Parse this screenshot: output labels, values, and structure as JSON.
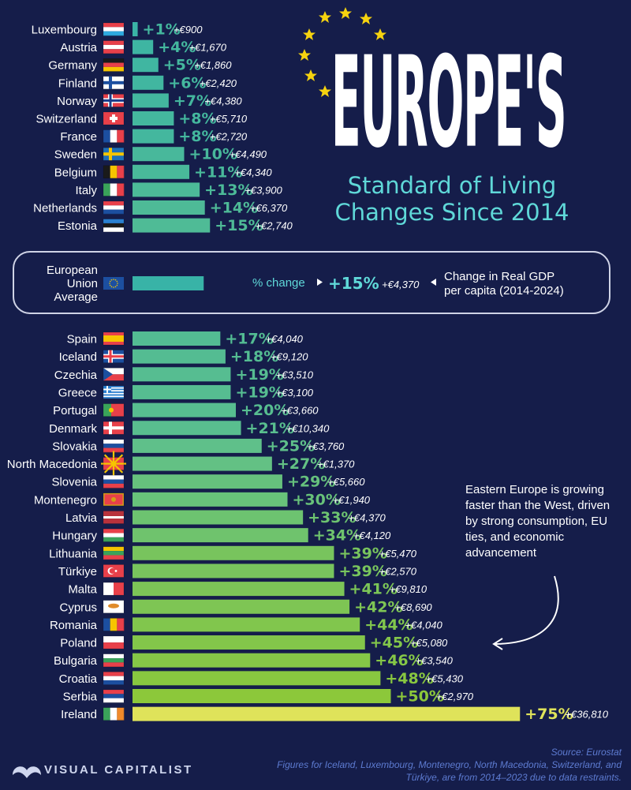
{
  "title": {
    "headline": "EUROPE'S",
    "subtitle_line1": "Standard of Living",
    "subtitle_line2": "Changes Since 2014"
  },
  "eu_box": {
    "label_line1": "European",
    "label_line2": "Union",
    "label_line3": "Average",
    "pct_change_label": "% change",
    "gdp_label_line1": "Change in Real GDP",
    "gdp_label_line2": "per capita (2014-2024)"
  },
  "annotation": "Eastern Europe is growing faster than the West, driven by strong consumption, EU ties, and economic advancement",
  "footer": {
    "brand": "VISUAL CAPITALIST",
    "source": "Source: Eurostat",
    "note": "Figures for Iceland, Luxembourg, Montenegro, North Macedonia, Switzerland, and Türkiye, are from 2014–2023 due to data restraints."
  },
  "colors": {
    "background": "#151d4a",
    "teal": "#38b3a7",
    "green": "#8cc83a",
    "yellow": "#dfe35a",
    "accent_text": "#5fd8d8",
    "star": "#f6d30f"
  },
  "chart_data": {
    "type": "bar",
    "orientation": "horizontal",
    "unit": "percent change in real GDP per capita, 2014-2024",
    "reference": {
      "name": "European Union Average",
      "pct": 15,
      "label": "+15%",
      "abs": "+€4,370"
    },
    "categories": [
      "Luxembourg",
      "Austria",
      "Germany",
      "Finland",
      "Norway",
      "Switzerland",
      "France",
      "Sweden",
      "Belgium",
      "Italy",
      "Netherlands",
      "Estonia",
      "Spain",
      "Iceland",
      "Czechia",
      "Greece",
      "Portugal",
      "Denmark",
      "Slovakia",
      "North Macedonia",
      "Slovenia",
      "Montenegro",
      "Latvia",
      "Hungary",
      "Lithuania",
      "Türkiye",
      "Malta",
      "Cyprus",
      "Romania",
      "Poland",
      "Bulgaria",
      "Croatia",
      "Serbia",
      "Ireland"
    ],
    "values": [
      1,
      4,
      5,
      6,
      7,
      8,
      8,
      10,
      11,
      13,
      14,
      15,
      17,
      18,
      19,
      19,
      20,
      21,
      25,
      27,
      29,
      30,
      33,
      34,
      39,
      39,
      41,
      42,
      44,
      45,
      46,
      48,
      50,
      75
    ],
    "pct_labels": [
      "+1%",
      "+4%",
      "+5%",
      "+6%",
      "+7%",
      "+8%",
      "+8%",
      "+10%",
      "+11%",
      "+13%",
      "+14%",
      "+15%",
      "+17%",
      "+18%",
      "+19%",
      "+19%",
      "+20%",
      "+21%",
      "+25%",
      "+27%",
      "+29%",
      "+30%",
      "+33%",
      "+34%",
      "+39%",
      "+39%",
      "+41%",
      "+42%",
      "+44%",
      "+45%",
      "+46%",
      "+48%",
      "+50%",
      "+75%"
    ],
    "abs_labels": [
      "+€900",
      "+€1,670",
      "+€1,860",
      "+€2,420",
      "+€4,380",
      "+€5,710",
      "+€2,720",
      "+€4,490",
      "+€4,340",
      "+€3,900",
      "+€6,370",
      "+€2,740",
      "+€4,040",
      "+€9,120",
      "+€3,510",
      "+€3,100",
      "+€3,660",
      "+€10,340",
      "+€3,760",
      "+€1,370",
      "+€5,660",
      "+€1,940",
      "+€4,370",
      "+€4,120",
      "+€5,470",
      "+€2,570",
      "+€9,810",
      "+€8,690",
      "+€4,040",
      "+€5,080",
      "+€3,540",
      "+€5,430",
      "+€2,970",
      "+€36,810"
    ],
    "flags": [
      {
        "t": "h",
        "c": [
          "#e8404a",
          "#ffffff",
          "#2eaadf"
        ]
      },
      {
        "t": "h",
        "c": [
          "#e8404a",
          "#ffffff",
          "#e8404a"
        ]
      },
      {
        "t": "h",
        "c": [
          "#1a1a1a",
          "#e8404a",
          "#f6c500"
        ]
      },
      {
        "t": "nordic",
        "c": [
          "#ffffff",
          "#1c4fa0"
        ]
      },
      {
        "t": "nordic2",
        "c": [
          "#e8404a",
          "#ffffff",
          "#1c3c8a"
        ]
      },
      {
        "t": "swiss",
        "c": [
          "#e8404a",
          "#ffffff"
        ]
      },
      {
        "t": "v",
        "c": [
          "#1c4fa0",
          "#ffffff",
          "#e8404a"
        ]
      },
      {
        "t": "nordic",
        "c": [
          "#1e6fb8",
          "#f6c500"
        ]
      },
      {
        "t": "v",
        "c": [
          "#1a1a1a",
          "#f6c500",
          "#e8404a"
        ]
      },
      {
        "t": "v",
        "c": [
          "#3aa35a",
          "#ffffff",
          "#e8404a"
        ]
      },
      {
        "t": "h",
        "c": [
          "#e8404a",
          "#ffffff",
          "#1c4fa0"
        ]
      },
      {
        "t": "h",
        "c": [
          "#2a7fd0",
          "#1a1a1a",
          "#ffffff"
        ]
      },
      {
        "t": "spain",
        "c": [
          "#e8404a",
          "#f6c500"
        ]
      },
      {
        "t": "nordic2",
        "c": [
          "#1c4fa0",
          "#ffffff",
          "#e8404a"
        ]
      },
      {
        "t": "czech",
        "c": [
          "#ffffff",
          "#e8404a",
          "#1c4fa0"
        ]
      },
      {
        "t": "greece",
        "c": [
          "#2a7fd0",
          "#ffffff"
        ]
      },
      {
        "t": "portugal",
        "c": [
          "#3aa35a",
          "#e8404a"
        ]
      },
      {
        "t": "nordic",
        "c": [
          "#e8404a",
          "#ffffff"
        ]
      },
      {
        "t": "h",
        "c": [
          "#ffffff",
          "#1c4fa0",
          "#e8404a"
        ]
      },
      {
        "t": "macedonia",
        "c": [
          "#e8404a",
          "#f6c500"
        ]
      },
      {
        "t": "h",
        "c": [
          "#ffffff",
          "#1c4fa0",
          "#e8404a"
        ]
      },
      {
        "t": "monte",
        "c": [
          "#e8404a",
          "#d4a017"
        ]
      },
      {
        "t": "latvia",
        "c": [
          "#b8323c",
          "#ffffff"
        ]
      },
      {
        "t": "h",
        "c": [
          "#e8404a",
          "#ffffff",
          "#3aa35a"
        ]
      },
      {
        "t": "h",
        "c": [
          "#f6c500",
          "#3aa35a",
          "#e8404a"
        ]
      },
      {
        "t": "turkey",
        "c": [
          "#e8404a",
          "#ffffff"
        ]
      },
      {
        "t": "malta",
        "c": [
          "#ffffff",
          "#e8404a"
        ]
      },
      {
        "t": "cyprus",
        "c": [
          "#ffffff",
          "#e08b2a"
        ]
      },
      {
        "t": "v",
        "c": [
          "#1c4fa0",
          "#f6c500",
          "#e8404a"
        ]
      },
      {
        "t": "h2",
        "c": [
          "#ffffff",
          "#e8404a"
        ]
      },
      {
        "t": "h",
        "c": [
          "#ffffff",
          "#3aa35a",
          "#e8404a"
        ]
      },
      {
        "t": "h",
        "c": [
          "#e8404a",
          "#ffffff",
          "#1c4fa0"
        ]
      },
      {
        "t": "h",
        "c": [
          "#e8404a",
          "#1c4fa0",
          "#ffffff"
        ]
      },
      {
        "t": "v",
        "c": [
          "#3aa35a",
          "#ffffff",
          "#f08a2a"
        ]
      }
    ]
  }
}
